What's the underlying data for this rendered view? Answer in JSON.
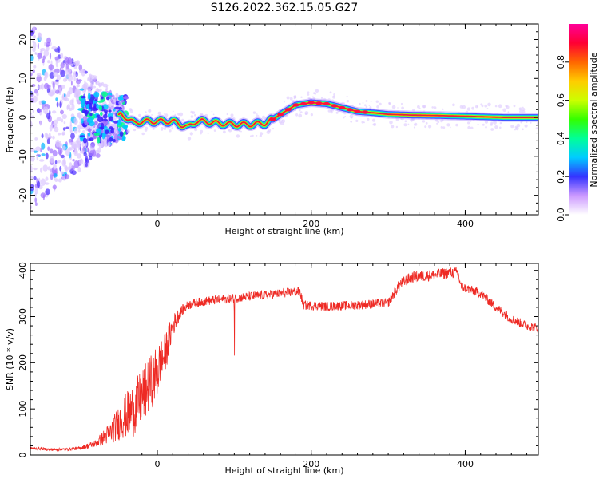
{
  "title": "S126.2022.362.15.05.G27",
  "colors": {
    "snr_line": "#ee2a24",
    "ridge": "#e8203a",
    "frame": "#000000"
  },
  "chart_data": [
    {
      "type": "heatmap",
      "xlabel": "Height of straight line (km)",
      "ylabel": "Frequency (Hz)",
      "xlim": [
        -165,
        495
      ],
      "ylim": [
        -25,
        24
      ],
      "xticks": [
        0,
        200,
        400
      ],
      "yticks": [
        -20,
        -10,
        0,
        10,
        20
      ],
      "ridge": {
        "x": [
          -50,
          -40,
          -30,
          -20,
          0,
          20,
          30,
          40,
          50,
          60,
          80,
          100,
          120,
          140,
          150,
          160,
          170,
          180,
          200,
          220,
          240,
          260,
          280,
          300,
          330,
          360,
          400,
          450,
          495
        ],
        "y": [
          0.8,
          0.0,
          -1.5,
          -1.0,
          -1.0,
          -1.0,
          -1.8,
          -2.5,
          -1.0,
          -1.0,
          -1.5,
          -1.8,
          -1.8,
          -1.5,
          -0.5,
          0.8,
          2.0,
          3.2,
          3.8,
          3.5,
          2.5,
          1.5,
          1.2,
          0.8,
          0.6,
          0.5,
          0.3,
          0.0,
          0.0
        ]
      },
      "colorbar": {
        "label": "Normalized spectral amplitude",
        "range": [
          0,
          1
        ],
        "ticks": [
          "0.0",
          "0.2",
          "0.4",
          "0.6",
          "0.8"
        ]
      }
    },
    {
      "type": "line",
      "xlabel": "Height of straight line (km)",
      "ylabel": "SNR (10 * v/v)",
      "xlim": [
        -165,
        495
      ],
      "ylim": [
        0,
        415
      ],
      "xticks": [
        0,
        200,
        400
      ],
      "yticks": [
        0,
        100,
        200,
        300,
        400
      ],
      "series": [
        {
          "x": [
            -165,
            -140,
            -120,
            -100,
            -80,
            -60,
            -45,
            -30,
            -15,
            0,
            10,
            20,
            30,
            40,
            50,
            70,
            100,
            130,
            160,
            185,
            190,
            220,
            260,
            300,
            315,
            330,
            360,
            380,
            390,
            395,
            420,
            440,
            460,
            480,
            495
          ],
          "values": [
            15,
            12,
            12,
            15,
            25,
            50,
            80,
            100,
            140,
            180,
            220,
            280,
            310,
            325,
            330,
            335,
            340,
            345,
            350,
            355,
            325,
            322,
            325,
            330,
            370,
            385,
            390,
            395,
            395,
            365,
            350,
            320,
            295,
            280,
            275
          ],
          "noise": [
            3,
            3,
            3,
            4,
            8,
            25,
            45,
            60,
            60,
            60,
            45,
            25,
            12,
            10,
            10,
            10,
            10,
            10,
            10,
            10,
            10,
            10,
            10,
            10,
            12,
            12,
            12,
            12,
            12,
            10,
            10,
            10,
            10,
            10,
            10
          ]
        }
      ]
    }
  ]
}
